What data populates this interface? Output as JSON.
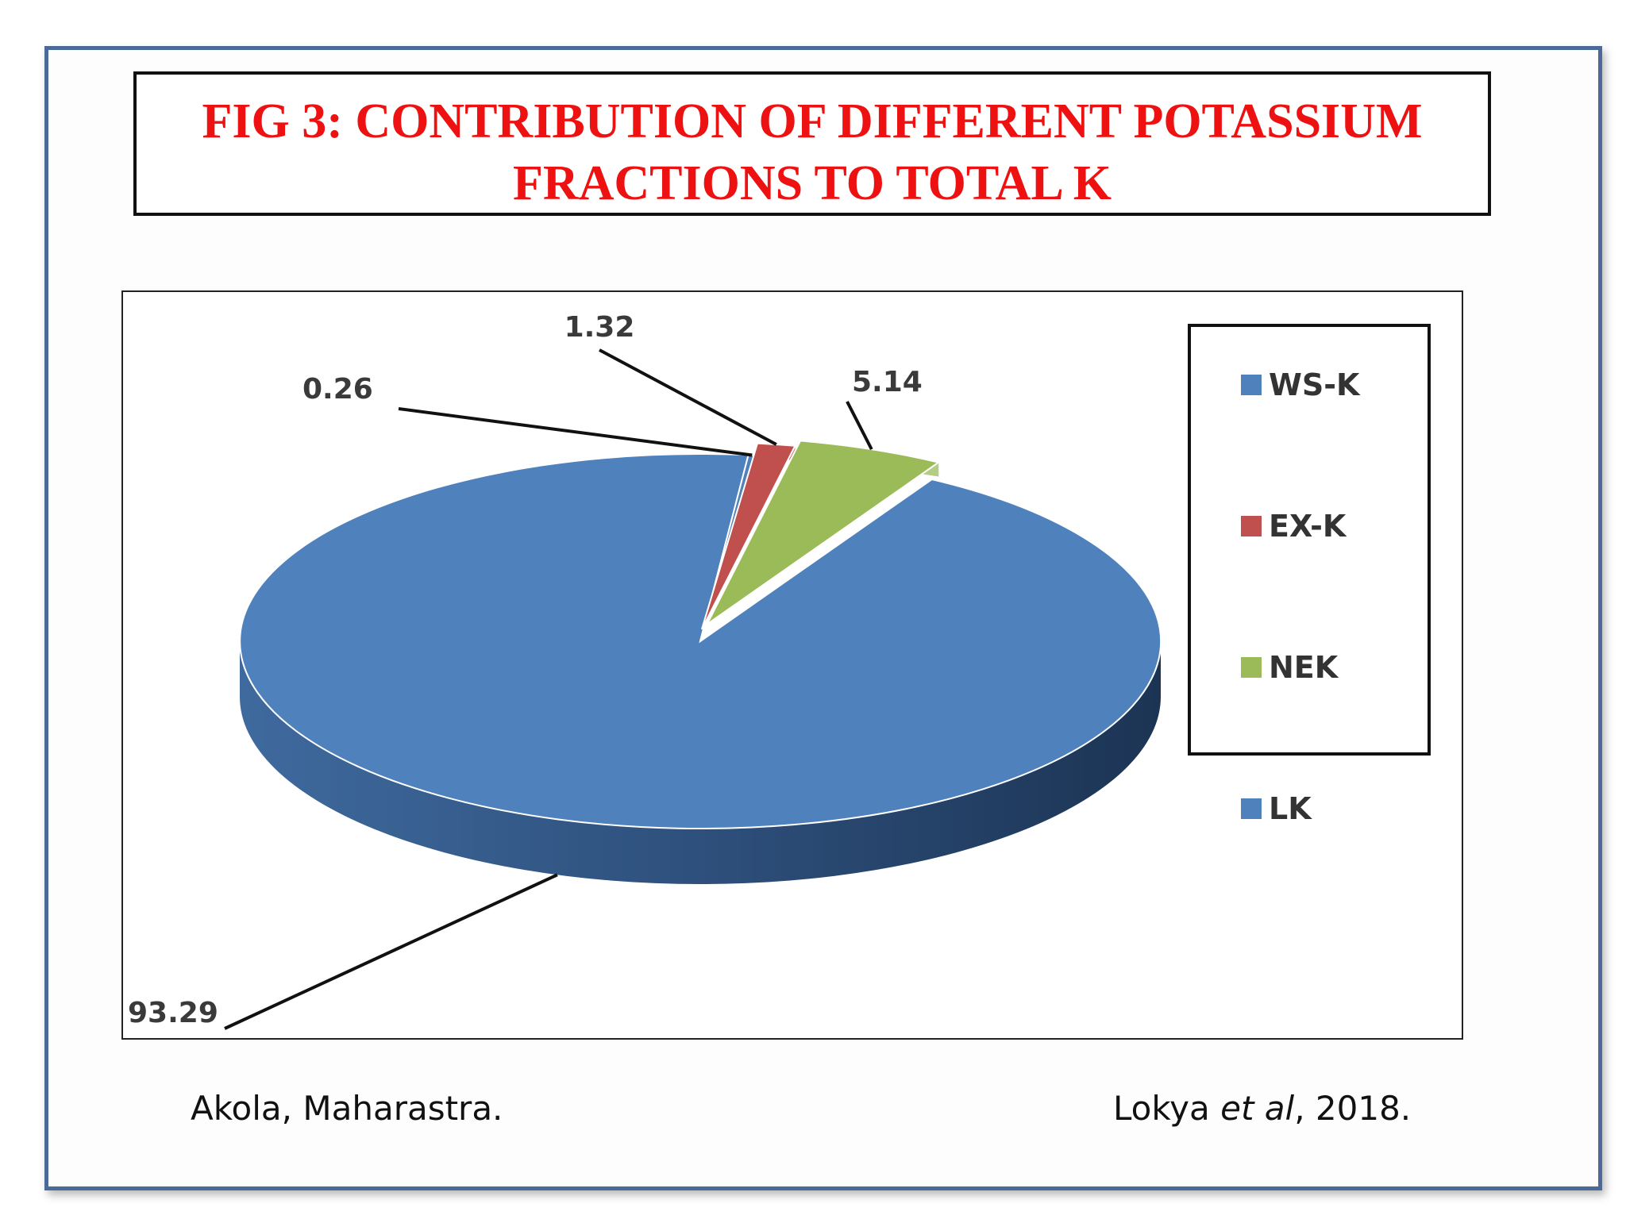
{
  "title": {
    "line1": "FIG 3: CONTRIBUTION OF DIFFERENT POTASSIUM",
    "line2": "FRACTIONS TO TOTAL K"
  },
  "footer": {
    "location": "Akola, Maharastra.",
    "citation_author": "Lokya",
    "citation_etal": "et al",
    "citation_year": ", 2018."
  },
  "colors": {
    "WS-K": "#4f81bd",
    "EX-K": "#c0504d",
    "NEK": "#9bbb59",
    "LK": "#4f81bd",
    "frame": "#4a6a9a",
    "title": "#ee1111"
  },
  "chart_data": {
    "type": "pie",
    "style": "3d-exploded",
    "categories": [
      "WS-K",
      "EX-K",
      "NEK",
      "LK"
    ],
    "values": [
      0.26,
      1.32,
      5.14,
      93.29
    ],
    "data_labels": [
      "0.26",
      "1.32",
      "5.14",
      "93.29"
    ],
    "legend_position": "right"
  }
}
